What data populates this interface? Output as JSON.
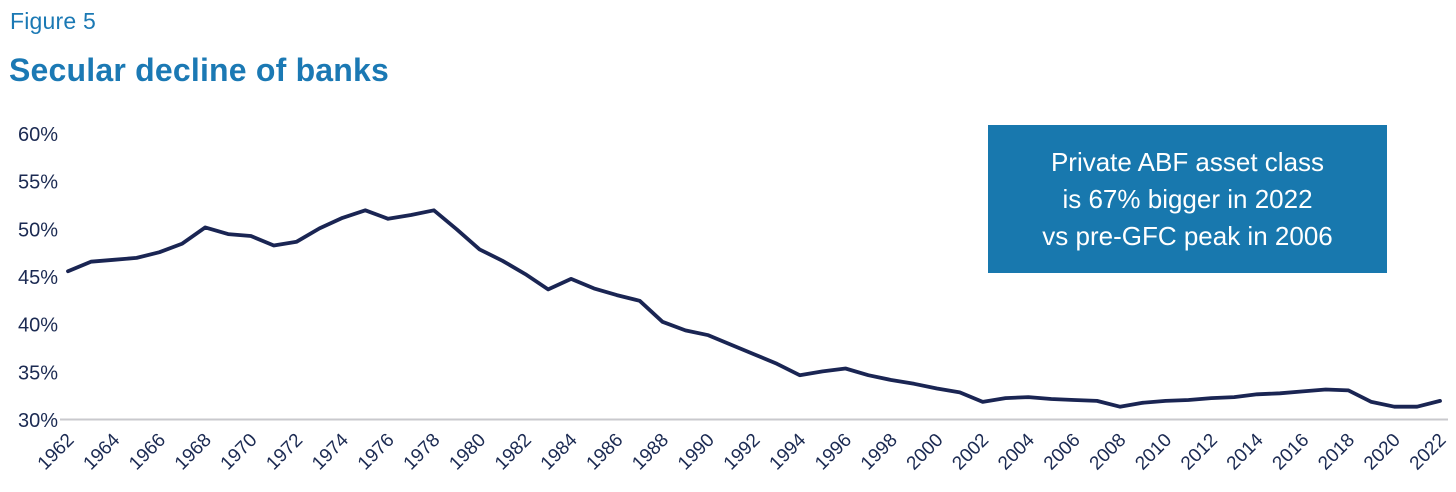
{
  "figure": {
    "label": "Figure 5",
    "title": "Secular decline of banks"
  },
  "callout": {
    "text": "Private ABF asset class\nis 67% bigger in 2022\nvs pre-GFC peak in 2006",
    "bg_color": "#1878ae",
    "text_color": "#ffffff"
  },
  "colors": {
    "title_blue": "#1b79b4",
    "line_navy": "#1a2553",
    "tick_text": "#1b2a52",
    "axis_line": "#c9c9cd"
  },
  "chart_data": {
    "type": "line",
    "title": "Secular decline of banks",
    "xlabel": "",
    "ylabel": "",
    "ylim": [
      30,
      60
    ],
    "y_ticks": [
      30,
      35,
      40,
      45,
      50,
      55,
      60
    ],
    "y_tick_suffix": "%",
    "x_tick_step": 2,
    "grid": false,
    "legend": false,
    "x": [
      1962,
      1963,
      1964,
      1965,
      1966,
      1967,
      1968,
      1969,
      1970,
      1971,
      1972,
      1973,
      1974,
      1975,
      1976,
      1977,
      1978,
      1979,
      1980,
      1981,
      1982,
      1983,
      1984,
      1985,
      1986,
      1987,
      1988,
      1989,
      1990,
      1991,
      1992,
      1993,
      1994,
      1995,
      1996,
      1997,
      1998,
      1999,
      2000,
      2001,
      2002,
      2003,
      2004,
      2005,
      2006,
      2007,
      2008,
      2009,
      2010,
      2011,
      2012,
      2013,
      2014,
      2015,
      2016,
      2017,
      2018,
      2019,
      2020,
      2021,
      2022
    ],
    "values": [
      45.6,
      46.6,
      46.8,
      47.0,
      47.6,
      48.5,
      50.2,
      49.5,
      49.3,
      48.3,
      48.7,
      50.1,
      51.2,
      52.0,
      51.1,
      51.5,
      52.0,
      50.0,
      47.9,
      46.7,
      45.3,
      43.7,
      44.8,
      43.8,
      43.1,
      42.5,
      40.3,
      39.4,
      38.9,
      37.9,
      36.9,
      35.9,
      34.7,
      35.1,
      35.4,
      34.7,
      34.2,
      33.8,
      33.3,
      32.9,
      31.9,
      32.3,
      32.4,
      32.2,
      32.1,
      32.0,
      31.4,
      31.8,
      32.0,
      32.1,
      32.3,
      32.4,
      32.7,
      32.8,
      33.0,
      33.2,
      33.1,
      31.9,
      31.4,
      31.4,
      32.0
    ]
  }
}
